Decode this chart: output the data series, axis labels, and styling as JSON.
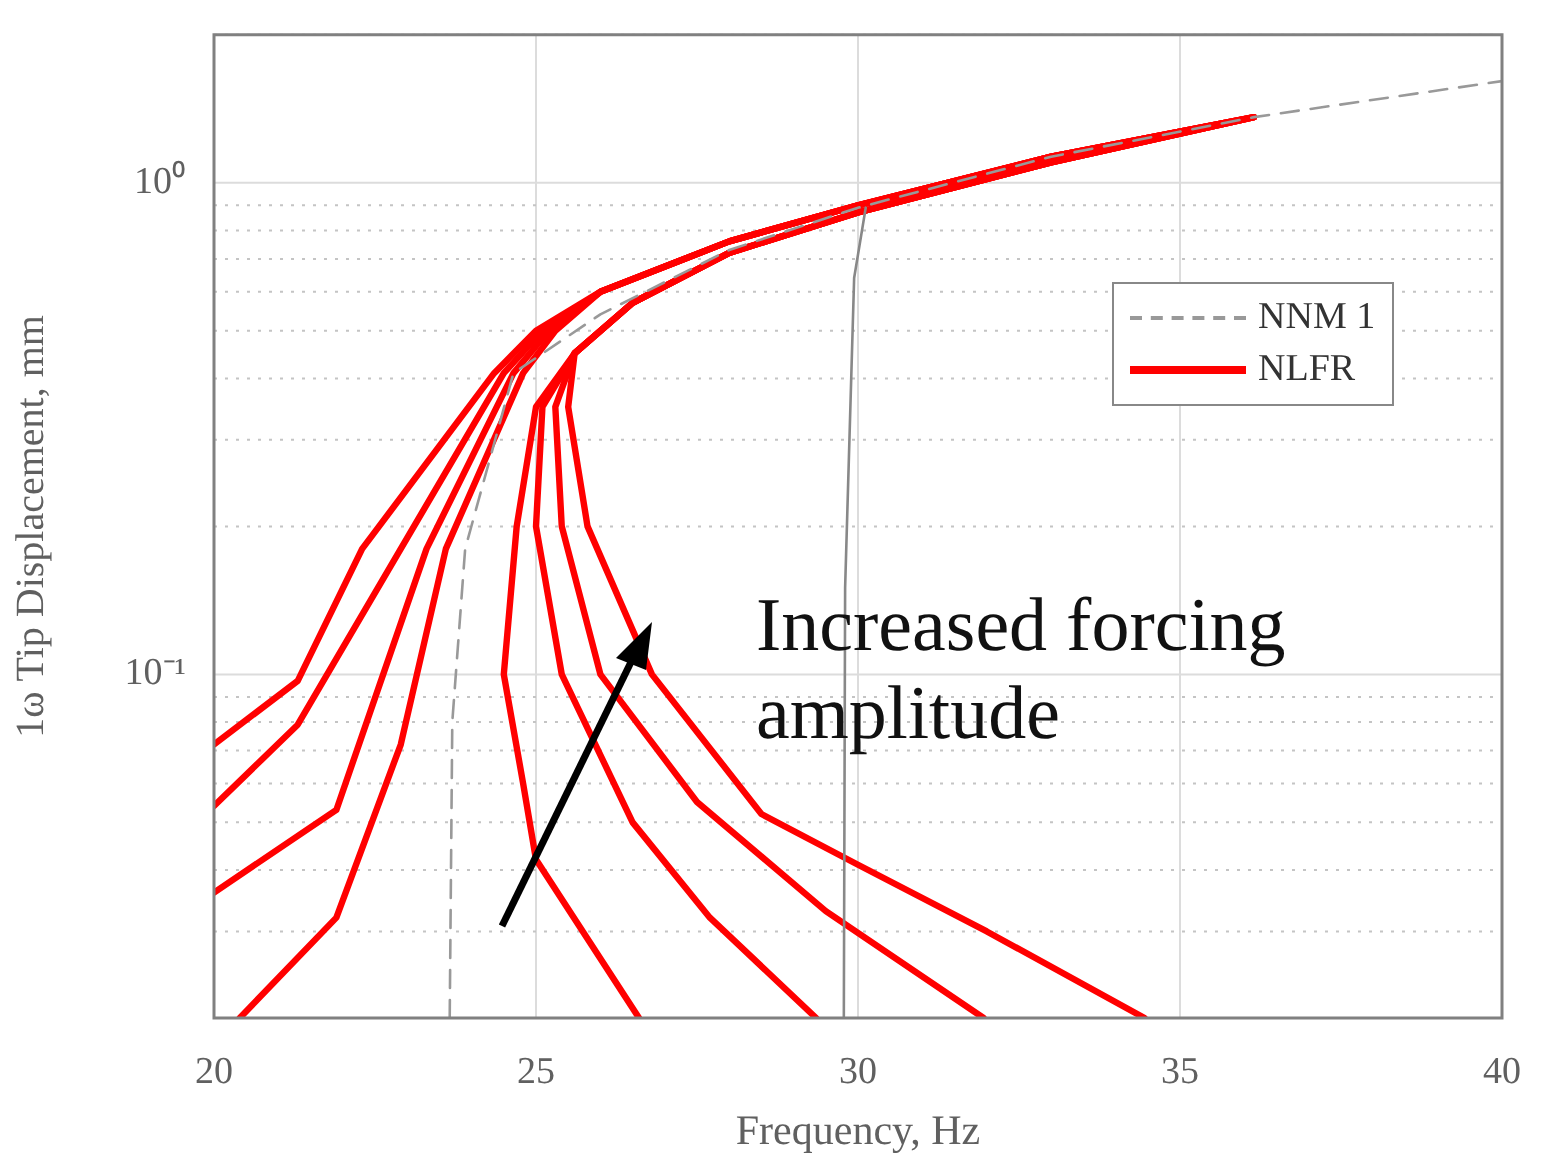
{
  "chart_data": {
    "type": "line",
    "xlabel": "Frequency, Hz",
    "ylabel": "1ω Tip Displacement, mm",
    "log": "y",
    "grid": true,
    "legend": "right",
    "marker": "none",
    "xlim": [
      20,
      40
    ],
    "xticks": [
      20,
      25,
      30,
      35,
      40
    ],
    "ylim": [
      0.02,
      2
    ],
    "yticks": [
      {
        "value": 0.02,
        "label": null
      },
      {
        "value": 0.03,
        "label": null
      },
      {
        "value": 0.04,
        "label": null
      },
      {
        "value": 0.05,
        "label": null
      },
      {
        "value": 0.06,
        "label": null
      },
      {
        "value": 0.07,
        "label": null
      },
      {
        "value": 0.08,
        "label": null
      },
      {
        "value": 0.09,
        "label": null
      },
      {
        "value": 0.1,
        "label": "10⁻¹"
      },
      {
        "value": 0.2,
        "label": null
      },
      {
        "value": 0.3,
        "label": null
      },
      {
        "value": 0.4,
        "label": null
      },
      {
        "value": 0.5,
        "label": null
      },
      {
        "value": 0.6,
        "label": null
      },
      {
        "value": 0.7,
        "label": null
      },
      {
        "value": 0.8,
        "label": null
      },
      {
        "value": 0.9,
        "label": null
      },
      {
        "value": 1,
        "label": "10⁰"
      },
      {
        "value": 2,
        "label": null
      }
    ],
    "annotations": [
      "Increased forcing amplitude"
    ],
    "series": [
      {
        "name": "NNM 1",
        "color": "#999999",
        "line_style": "dashed",
        "x": [
          23.66,
          23.7,
          23.9,
          24.65,
          26,
          28,
          30,
          33,
          36.15,
          40
        ],
        "values": [
          0.02,
          0.08,
          0.18,
          0.41,
          0.54,
          0.73,
          0.89,
          1.13,
          1.36,
          1.61
        ]
      },
      {
        "color": "#888888",
        "line_style": "solid",
        "x": [
          29.78,
          29.8,
          29.94,
          30.12
        ],
        "values": [
          0.02,
          0.15,
          0.64,
          0.89
        ]
      },
      {
        "name": "NLFR",
        "color": "#ff0000",
        "line_style": "solid",
        "x": [
          20,
          21.3,
          22.3,
          24.35,
          25,
          26,
          28,
          30,
          33,
          36.15,
          33,
          30,
          28,
          26.5,
          25.6,
          25.5,
          25.8,
          26.8,
          28.5,
          30,
          32,
          34.45
        ],
        "values": [
          0.072,
          0.097,
          0.18,
          0.41,
          0.5,
          0.6,
          0.76,
          0.9,
          1.13,
          1.36,
          1.1,
          0.87,
          0.72,
          0.57,
          0.45,
          0.35,
          0.2,
          0.1,
          0.052,
          0.041,
          0.03,
          0.02
        ]
      },
      {
        "color": "#ff0000",
        "line_style": "solid",
        "x": [
          20,
          21.3,
          22.9,
          24.5,
          25.1,
          26,
          28,
          30,
          33,
          36.15,
          33,
          30,
          28,
          26.5,
          25.6,
          25.3,
          25.4,
          26,
          27.5,
          29.5,
          31.95
        ],
        "values": [
          0.054,
          0.079,
          0.18,
          0.41,
          0.5,
          0.6,
          0.76,
          0.9,
          1.13,
          1.36,
          1.1,
          0.87,
          0.72,
          0.57,
          0.45,
          0.35,
          0.2,
          0.1,
          0.055,
          0.033,
          0.02
        ]
      },
      {
        "color": "#ff0000",
        "line_style": "solid",
        "x": [
          20,
          21.9,
          23.3,
          24.65,
          25.2,
          26,
          28,
          30,
          33,
          36.15,
          33,
          30,
          28,
          26.5,
          25.6,
          25.1,
          25,
          25.4,
          26.5,
          27.7,
          29.35
        ],
        "values": [
          0.036,
          0.053,
          0.18,
          0.41,
          0.5,
          0.6,
          0.76,
          0.9,
          1.13,
          1.36,
          1.1,
          0.87,
          0.72,
          0.57,
          0.45,
          0.35,
          0.2,
          0.1,
          0.05,
          0.032,
          0.02
        ]
      },
      {
        "color": "#ff0000",
        "line_style": "solid",
        "x": [
          20.4,
          21.9,
          22.9,
          23.6,
          24.8,
          25.3,
          26,
          28,
          30,
          33,
          36.15,
          33,
          30,
          28,
          26.5,
          25.6,
          25,
          24.7,
          24.5,
          24.8,
          25,
          26.6
        ],
        "values": [
          0.02,
          0.032,
          0.072,
          0.18,
          0.41,
          0.5,
          0.6,
          0.76,
          0.9,
          1.13,
          1.36,
          1.1,
          0.87,
          0.72,
          0.57,
          0.45,
          0.35,
          0.2,
          0.1,
          0.06,
          0.042,
          0.02
        ]
      }
    ]
  }
}
